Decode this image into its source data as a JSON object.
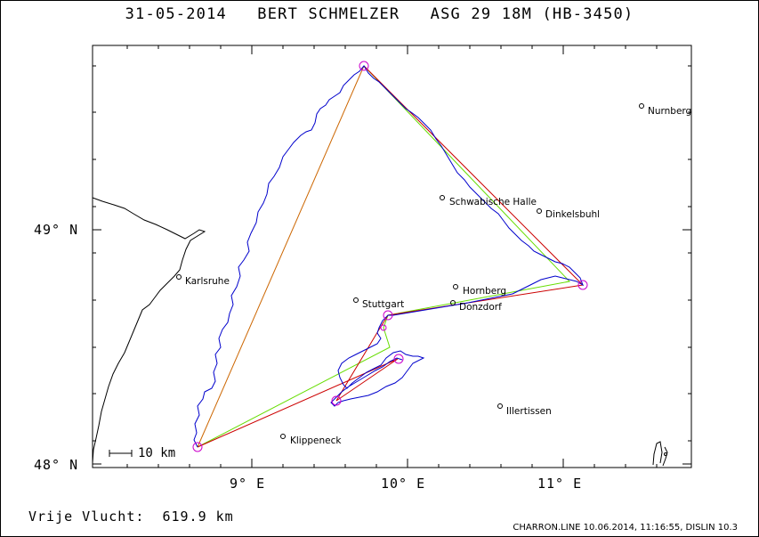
{
  "title": "31-05-2014   BERT SCHMELZER   ASG 29 18M (HB-3450)",
  "latitude_labels": [
    "49° N",
    "48° N"
  ],
  "longitude_labels": [
    "9° E",
    "10° E",
    "11° E"
  ],
  "cities": [
    {
      "name": "Nurnberg"
    },
    {
      "name": "Schwabische Halle"
    },
    {
      "name": "Dinkelsbuhl"
    },
    {
      "name": "Karlsruhe"
    },
    {
      "name": "Stuttgart"
    },
    {
      "name": "Hornberg"
    },
    {
      "name": "Donzdorf"
    },
    {
      "name": "Illertissen"
    },
    {
      "name": "Klippeneck"
    }
  ],
  "scale_bar_label": "10 km",
  "free_flight_label": "Vrije Vlucht:",
  "free_flight_distance": "619.9 km",
  "credit": "CHARRON.LINE 10.06.2014, 11:16:55, DISLIN 10.3",
  "colors": {
    "track": "#0000cc",
    "task_line_red": "#cc0000",
    "task_line_green": "#66dd00",
    "task_line_orange": "#cc6600",
    "turnpoint": "#cc00cc",
    "border": "#000000"
  }
}
